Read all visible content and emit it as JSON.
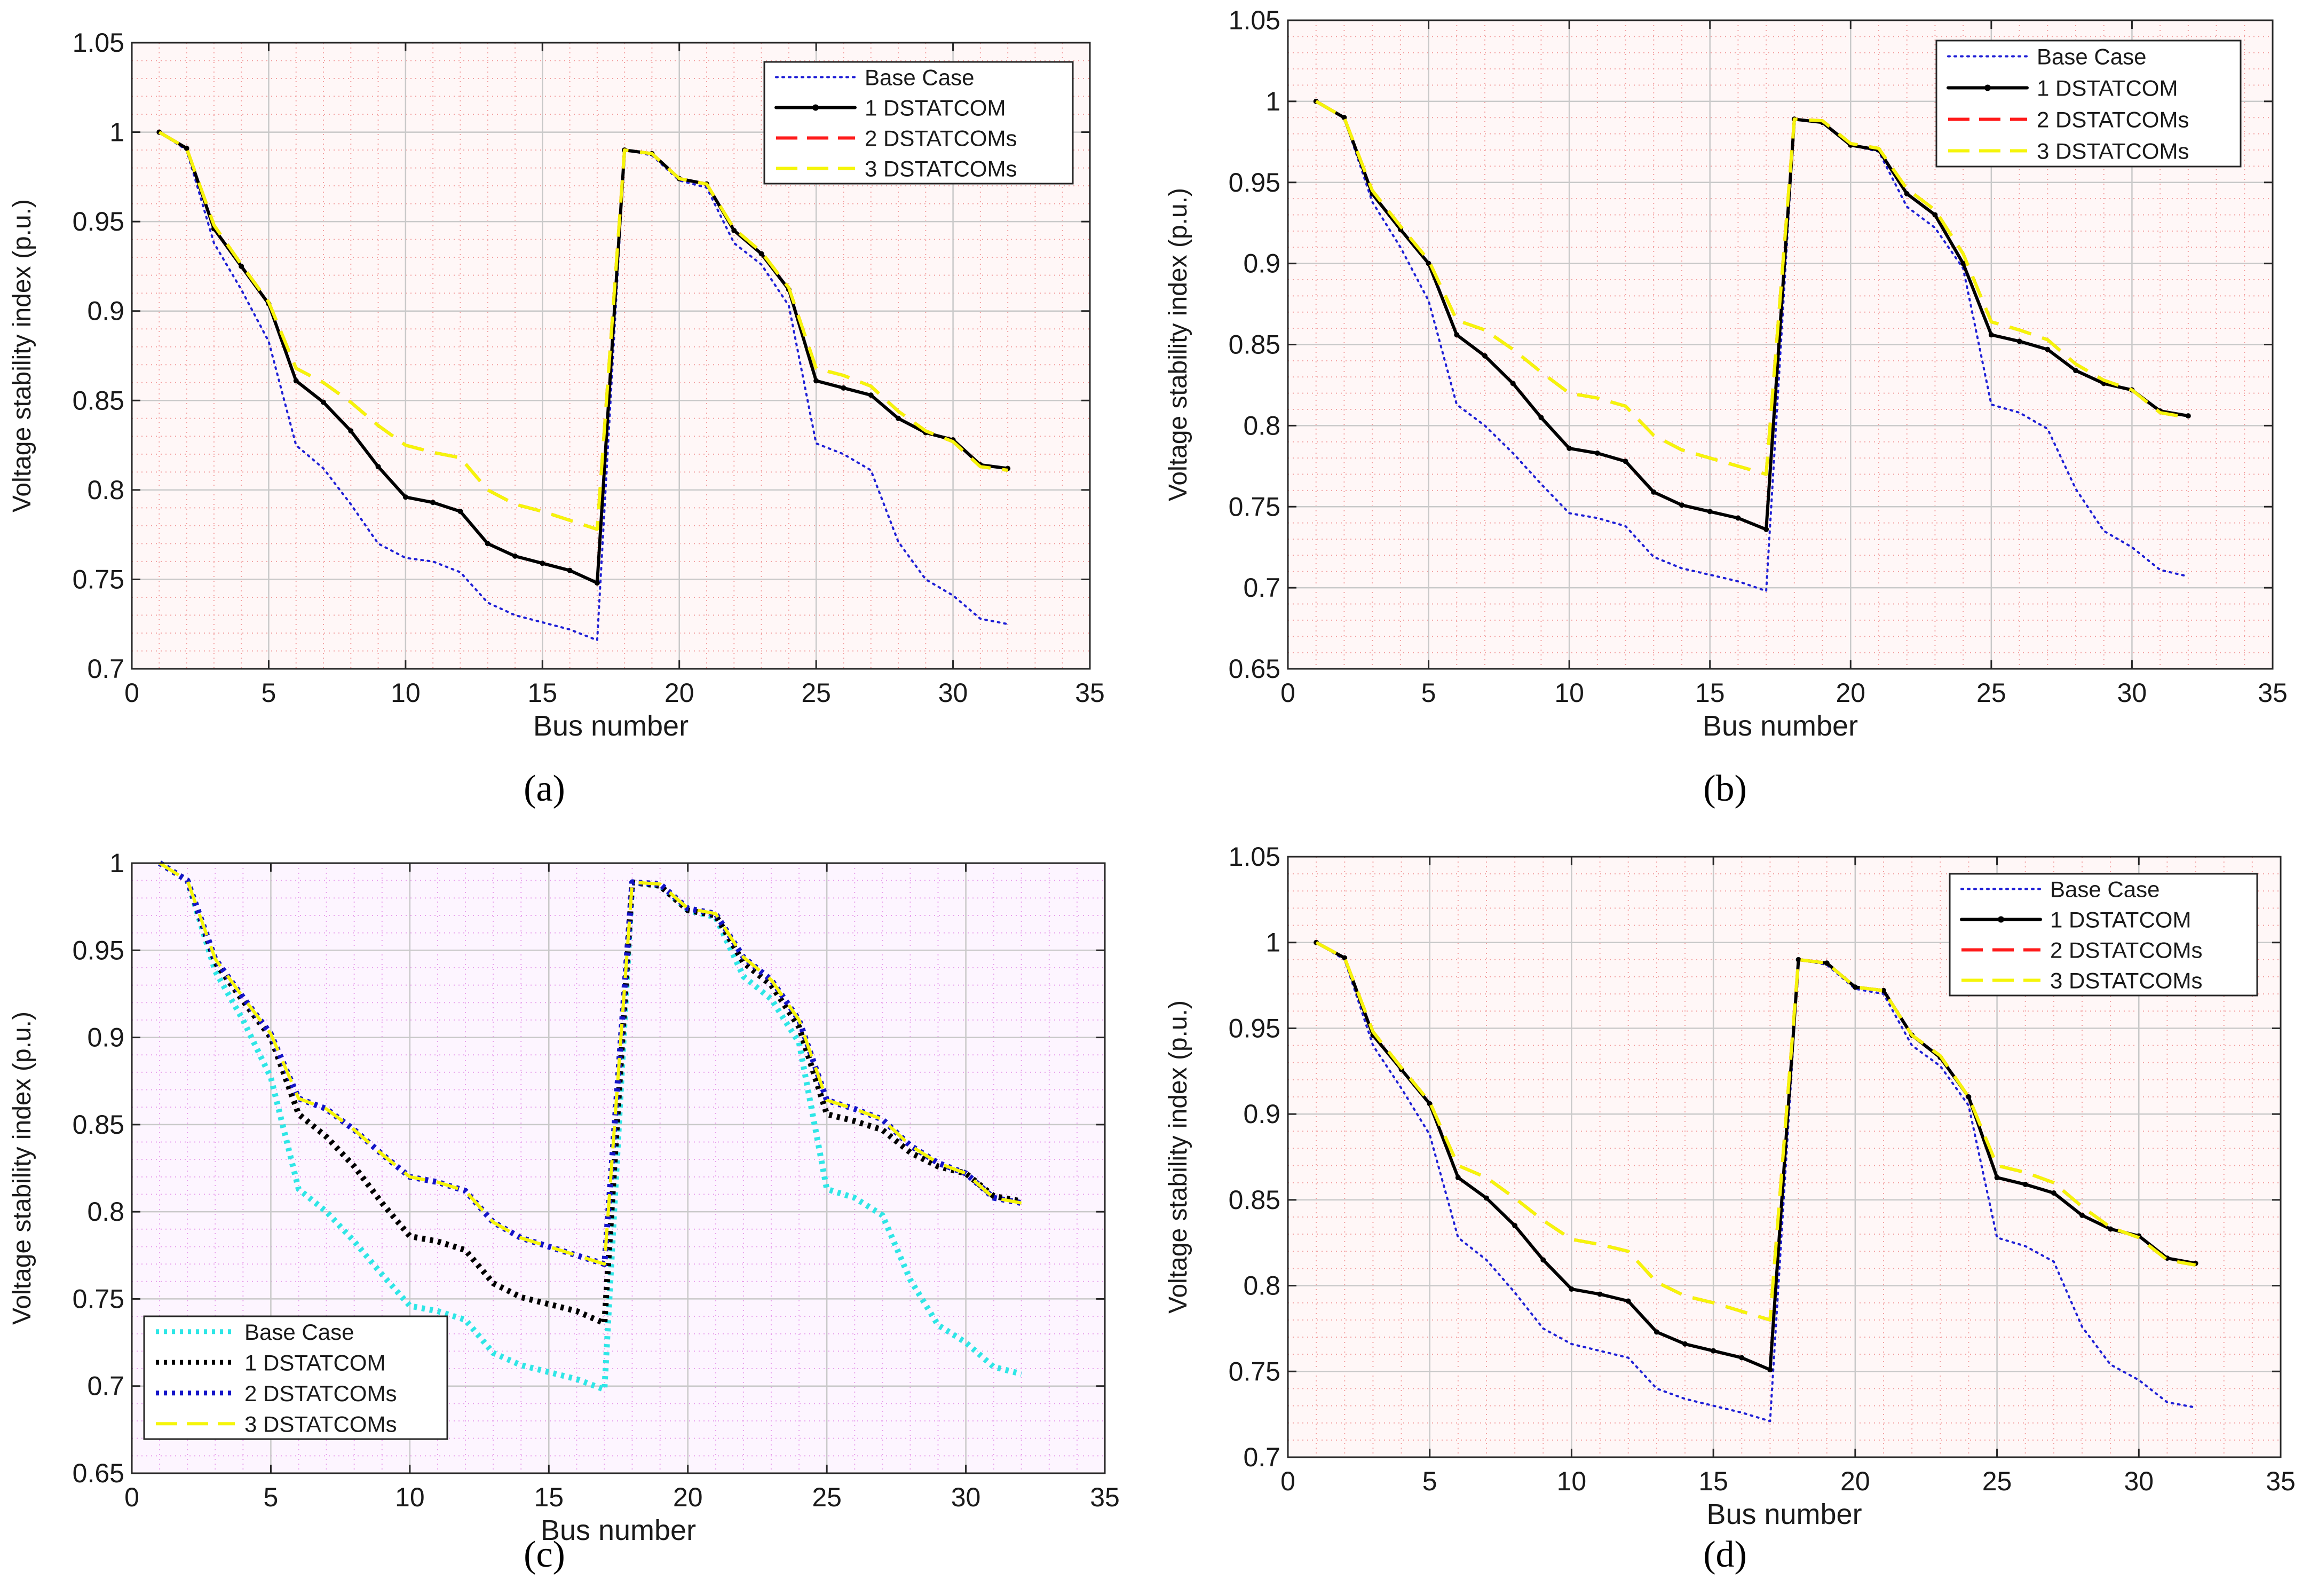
{
  "figure_labels": [
    "(a)",
    "(b)",
    "(c)",
    "(d)"
  ],
  "chart_data": [
    {
      "type": "line",
      "panel": "(a)",
      "xlabel": "Bus number",
      "ylabel": "Voltage stability index (p.u.)",
      "xlim": [
        0,
        35
      ],
      "ylim": [
        0.7,
        1.05
      ],
      "xticks": [
        0,
        5,
        10,
        15,
        20,
        25,
        30,
        35
      ],
      "yticks": [
        0.7,
        0.75,
        0.8,
        0.85,
        0.9,
        0.95,
        1,
        1.05
      ],
      "ytick_labels": [
        "0.7",
        "0.75",
        "0.8",
        "0.85",
        "0.9",
        "0.95",
        "1",
        "1.05"
      ],
      "grid": "on",
      "legend_position": "top-right",
      "x": [
        1,
        2,
        3,
        4,
        5,
        6,
        7,
        8,
        9,
        10,
        11,
        12,
        13,
        14,
        15,
        16,
        17,
        18,
        19,
        20,
        21,
        22,
        23,
        24,
        25,
        26,
        27,
        28,
        29,
        30,
        31,
        32
      ],
      "series": [
        {
          "name": "Base Case",
          "style": "dotted",
          "color": "#1f1fd6",
          "values": [
            1.0,
            0.99,
            0.938,
            0.912,
            0.883,
            0.825,
            0.812,
            0.792,
            0.77,
            0.762,
            0.76,
            0.754,
            0.737,
            0.73,
            0.726,
            0.722,
            0.716,
            0.99,
            0.987,
            0.973,
            0.969,
            0.938,
            0.926,
            0.903,
            0.826,
            0.82,
            0.811,
            0.771,
            0.75,
            0.741,
            0.728,
            0.725
          ]
        },
        {
          "name": "1 DSTATCOM",
          "style": "solid-marker",
          "color": "#000000",
          "values": [
            1.0,
            0.991,
            0.946,
            0.925,
            0.904,
            0.861,
            0.849,
            0.833,
            0.813,
            0.796,
            0.793,
            0.788,
            0.77,
            0.763,
            0.759,
            0.755,
            0.748,
            0.99,
            0.988,
            0.974,
            0.971,
            0.945,
            0.932,
            0.912,
            0.861,
            0.857,
            0.853,
            0.84,
            0.832,
            0.828,
            0.814,
            0.812
          ]
        },
        {
          "name": "2 DSTATCOMs",
          "style": "dashed",
          "color": "#ff1a1a",
          "values": [
            1.0,
            0.991,
            0.948,
            0.926,
            0.905,
            0.868,
            0.86,
            0.849,
            0.836,
            0.825,
            0.821,
            0.818,
            0.8,
            0.792,
            0.788,
            0.783,
            0.778,
            0.99,
            0.988,
            0.974,
            0.971,
            0.946,
            0.933,
            0.913,
            0.868,
            0.864,
            0.858,
            0.844,
            0.833,
            0.827,
            0.813,
            0.811
          ]
        },
        {
          "name": "3 DSTATCOMs",
          "style": "dashed",
          "color": "#f5f50a",
          "values": [
            1.0,
            0.991,
            0.948,
            0.926,
            0.905,
            0.868,
            0.86,
            0.849,
            0.836,
            0.825,
            0.821,
            0.818,
            0.8,
            0.792,
            0.788,
            0.783,
            0.778,
            0.99,
            0.988,
            0.974,
            0.971,
            0.946,
            0.933,
            0.913,
            0.868,
            0.864,
            0.858,
            0.844,
            0.833,
            0.827,
            0.813,
            0.811
          ]
        }
      ]
    },
    {
      "type": "line",
      "panel": "(b)",
      "xlabel": "Bus number",
      "ylabel": "Voltage stability index (p.u.)",
      "xlim": [
        0,
        35
      ],
      "ylim": [
        0.65,
        1.05
      ],
      "xticks": [
        0,
        5,
        10,
        15,
        20,
        25,
        30,
        35
      ],
      "yticks": [
        0.65,
        0.7,
        0.75,
        0.8,
        0.85,
        0.9,
        0.95,
        1,
        1.05
      ],
      "ytick_labels": [
        "0.65",
        "0.7",
        "0.75",
        "0.8",
        "0.85",
        "0.9",
        "0.95",
        "1",
        "1.05"
      ],
      "grid": "on",
      "legend_position": "top-right",
      "x": [
        1,
        2,
        3,
        4,
        5,
        6,
        7,
        8,
        9,
        10,
        11,
        12,
        13,
        14,
        15,
        16,
        17,
        18,
        19,
        20,
        21,
        22,
        23,
        24,
        25,
        26,
        27,
        28,
        29,
        30,
        31,
        32
      ],
      "series": [
        {
          "name": "Base Case",
          "style": "dotted",
          "color": "#1f1fd6",
          "values": [
            1.0,
            0.99,
            0.938,
            0.91,
            0.877,
            0.813,
            0.8,
            0.783,
            0.764,
            0.746,
            0.743,
            0.738,
            0.719,
            0.712,
            0.708,
            0.704,
            0.698,
            0.989,
            0.987,
            0.973,
            0.969,
            0.935,
            0.922,
            0.897,
            0.813,
            0.808,
            0.798,
            0.761,
            0.735,
            0.725,
            0.711,
            0.707
          ]
        },
        {
          "name": "1 DSTATCOM",
          "style": "solid-marker",
          "color": "#000000",
          "values": [
            1.0,
            0.99,
            0.943,
            0.921,
            0.9,
            0.856,
            0.843,
            0.826,
            0.805,
            0.786,
            0.783,
            0.778,
            0.759,
            0.751,
            0.747,
            0.743,
            0.736,
            0.989,
            0.987,
            0.973,
            0.97,
            0.943,
            0.93,
            0.9,
            0.856,
            0.852,
            0.847,
            0.834,
            0.826,
            0.822,
            0.809,
            0.806
          ]
        },
        {
          "name": "2 DSTATCOMs",
          "style": "dashed",
          "color": "#ff1a1a",
          "values": [
            1.0,
            0.99,
            0.945,
            0.923,
            0.902,
            0.865,
            0.859,
            0.847,
            0.833,
            0.82,
            0.817,
            0.812,
            0.794,
            0.785,
            0.78,
            0.775,
            0.77,
            0.989,
            0.988,
            0.974,
            0.971,
            0.946,
            0.933,
            0.906,
            0.864,
            0.859,
            0.853,
            0.838,
            0.828,
            0.822,
            0.808,
            0.805
          ]
        },
        {
          "name": "3 DSTATCOMs",
          "style": "dashed",
          "color": "#f5f50a",
          "values": [
            1.0,
            0.99,
            0.945,
            0.923,
            0.902,
            0.865,
            0.859,
            0.847,
            0.833,
            0.82,
            0.817,
            0.812,
            0.794,
            0.785,
            0.78,
            0.775,
            0.77,
            0.989,
            0.988,
            0.974,
            0.971,
            0.946,
            0.933,
            0.906,
            0.864,
            0.859,
            0.853,
            0.838,
            0.828,
            0.822,
            0.808,
            0.805
          ]
        }
      ]
    },
    {
      "type": "line",
      "panel": "(c)",
      "xlabel": "Bus number",
      "ylabel": "Voltage stability index (p.u.)",
      "xlim": [
        0,
        35
      ],
      "ylim": [
        0.65,
        1
      ],
      "xticks": [
        0,
        5,
        10,
        15,
        20,
        25,
        30,
        35
      ],
      "yticks": [
        0.65,
        0.7,
        0.75,
        0.8,
        0.85,
        0.9,
        0.95,
        1
      ],
      "ytick_labels": [
        "0.65",
        "0.7",
        "0.75",
        "0.8",
        "0.85",
        "0.9",
        "0.95",
        "1"
      ],
      "grid": "on",
      "legend_position": "bottom-left",
      "x": [
        1,
        2,
        3,
        4,
        5,
        6,
        7,
        8,
        9,
        10,
        11,
        12,
        13,
        14,
        15,
        16,
        17,
        18,
        19,
        20,
        21,
        22,
        23,
        24,
        25,
        26,
        27,
        28,
        29,
        30,
        31,
        32
      ],
      "series": [
        {
          "name": "Base Case",
          "style": "dotted-thick",
          "color": "#2ee6e6",
          "values": [
            1.0,
            0.99,
            0.938,
            0.91,
            0.877,
            0.813,
            0.8,
            0.783,
            0.764,
            0.746,
            0.743,
            0.738,
            0.719,
            0.712,
            0.708,
            0.704,
            0.698,
            0.989,
            0.987,
            0.973,
            0.969,
            0.935,
            0.922,
            0.897,
            0.813,
            0.808,
            0.798,
            0.761,
            0.735,
            0.725,
            0.711,
            0.707
          ]
        },
        {
          "name": "1 DSTATCOM",
          "style": "dotted-thick",
          "color": "#000000",
          "values": [
            1.0,
            0.99,
            0.943,
            0.921,
            0.9,
            0.856,
            0.843,
            0.826,
            0.805,
            0.786,
            0.783,
            0.778,
            0.759,
            0.751,
            0.747,
            0.743,
            0.736,
            0.989,
            0.987,
            0.973,
            0.97,
            0.943,
            0.93,
            0.906,
            0.856,
            0.852,
            0.847,
            0.834,
            0.826,
            0.822,
            0.809,
            0.806
          ]
        },
        {
          "name": "2 DSTATCOMs",
          "style": "dotted-thick",
          "color": "#1414c8",
          "values": [
            1.0,
            0.99,
            0.945,
            0.923,
            0.902,
            0.865,
            0.859,
            0.847,
            0.833,
            0.82,
            0.817,
            0.812,
            0.794,
            0.785,
            0.78,
            0.775,
            0.77,
            0.989,
            0.988,
            0.974,
            0.971,
            0.946,
            0.933,
            0.91,
            0.864,
            0.859,
            0.853,
            0.838,
            0.828,
            0.822,
            0.808,
            0.805
          ]
        },
        {
          "name": "3 DSTATCOMs",
          "style": "dashed",
          "color": "#f5f50a",
          "values": [
            1.0,
            0.99,
            0.945,
            0.923,
            0.902,
            0.865,
            0.859,
            0.847,
            0.833,
            0.82,
            0.817,
            0.812,
            0.794,
            0.785,
            0.78,
            0.775,
            0.77,
            0.989,
            0.988,
            0.974,
            0.971,
            0.946,
            0.933,
            0.91,
            0.864,
            0.859,
            0.853,
            0.838,
            0.828,
            0.822,
            0.808,
            0.805
          ]
        }
      ]
    },
    {
      "type": "line",
      "panel": "(d)",
      "xlabel": "Bus number",
      "ylabel": "Voltage stability index (p.u.)",
      "xlim": [
        0,
        35
      ],
      "ylim": [
        0.7,
        1.05
      ],
      "xticks": [
        0,
        5,
        10,
        15,
        20,
        25,
        30,
        35
      ],
      "yticks": [
        0.7,
        0.75,
        0.8,
        0.85,
        0.9,
        0.95,
        1,
        1.05
      ],
      "ytick_labels": [
        "0.7",
        "0.75",
        "0.8",
        "0.85",
        "0.9",
        "0.95",
        "1",
        "1.05"
      ],
      "grid": "on",
      "legend_position": "top-right",
      "x": [
        1,
        2,
        3,
        4,
        5,
        6,
        7,
        8,
        9,
        10,
        11,
        12,
        13,
        14,
        15,
        16,
        17,
        18,
        19,
        20,
        21,
        22,
        23,
        24,
        25,
        26,
        27,
        28,
        29,
        30,
        31,
        32
      ],
      "series": [
        {
          "name": "Base Case",
          "style": "dotted",
          "color": "#1f1fd6",
          "values": [
            1.0,
            0.99,
            0.94,
            0.915,
            0.888,
            0.828,
            0.815,
            0.796,
            0.775,
            0.766,
            0.762,
            0.758,
            0.74,
            0.734,
            0.73,
            0.726,
            0.721,
            0.99,
            0.987,
            0.973,
            0.97,
            0.94,
            0.928,
            0.905,
            0.828,
            0.823,
            0.814,
            0.776,
            0.754,
            0.745,
            0.732,
            0.729
          ]
        },
        {
          "name": "1 DSTATCOM",
          "style": "solid-marker",
          "color": "#000000",
          "values": [
            1.0,
            0.991,
            0.946,
            0.926,
            0.906,
            0.863,
            0.851,
            0.835,
            0.815,
            0.798,
            0.795,
            0.791,
            0.773,
            0.766,
            0.762,
            0.758,
            0.751,
            0.99,
            0.988,
            0.974,
            0.972,
            0.946,
            0.933,
            0.91,
            0.863,
            0.859,
            0.854,
            0.841,
            0.833,
            0.829,
            0.816,
            0.813
          ]
        },
        {
          "name": "2 DSTATCOMs",
          "style": "dashed",
          "color": "#ff1a1a",
          "values": [
            1.0,
            0.991,
            0.948,
            0.927,
            0.907,
            0.87,
            0.863,
            0.851,
            0.838,
            0.827,
            0.824,
            0.82,
            0.802,
            0.794,
            0.79,
            0.785,
            0.78,
            0.99,
            0.988,
            0.974,
            0.972,
            0.946,
            0.934,
            0.91,
            0.87,
            0.866,
            0.86,
            0.846,
            0.834,
            0.828,
            0.815,
            0.812
          ]
        },
        {
          "name": "3 DSTATCOMs",
          "style": "dashed",
          "color": "#f5f50a",
          "values": [
            1.0,
            0.991,
            0.948,
            0.927,
            0.907,
            0.87,
            0.863,
            0.851,
            0.838,
            0.827,
            0.824,
            0.82,
            0.802,
            0.794,
            0.79,
            0.785,
            0.78,
            0.99,
            0.988,
            0.974,
            0.972,
            0.946,
            0.934,
            0.91,
            0.87,
            0.866,
            0.86,
            0.846,
            0.834,
            0.828,
            0.815,
            0.812
          ]
        }
      ]
    }
  ]
}
